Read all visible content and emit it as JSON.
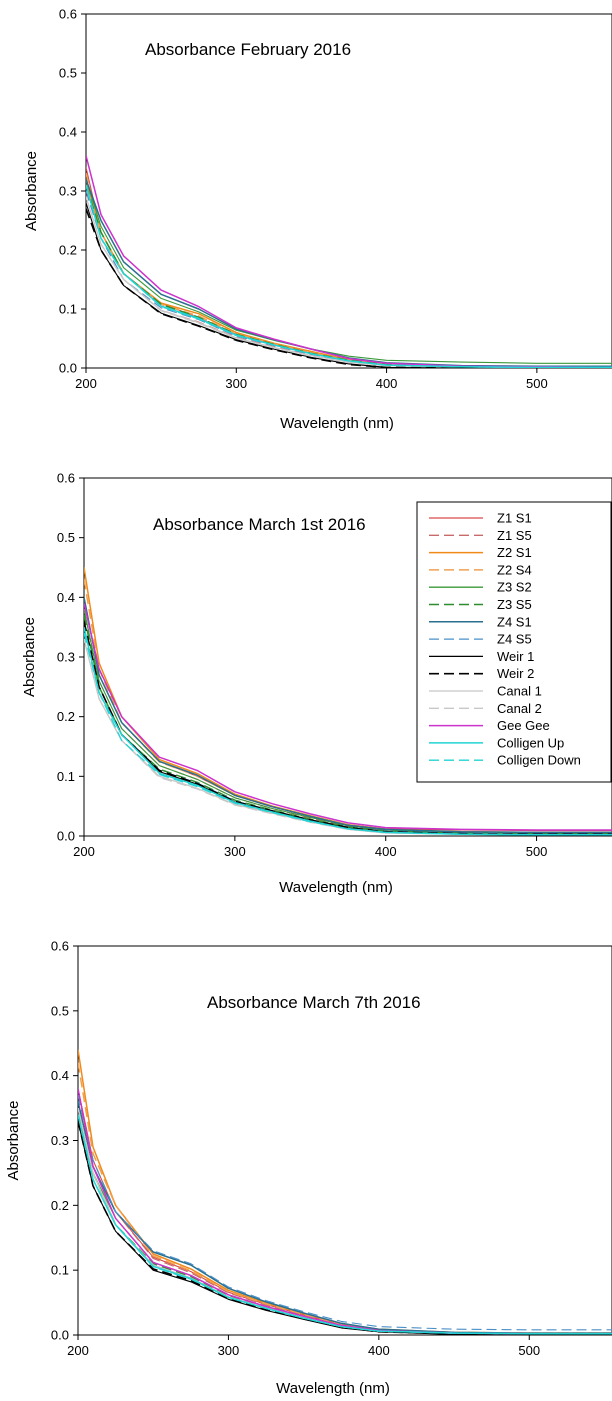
{
  "chart_data": [
    {
      "type": "line",
      "title": "Absorbance February 2016",
      "xlabel": "Wavelength (nm)",
      "ylabel": "Absorbance",
      "xlim": [
        200,
        550
      ],
      "ylim": [
        0,
        0.6
      ],
      "xticks": [
        "200",
        "300",
        "400",
        "500"
      ],
      "yticks": [
        "0.0",
        "0.1",
        "0.2",
        "0.3",
        "0.4",
        "0.5",
        "0.6"
      ],
      "grid": false,
      "legend": "none",
      "x": [
        200,
        210,
        225,
        250,
        275,
        300,
        325,
        350,
        375,
        400,
        450,
        500,
        550
      ],
      "series": [
        {
          "name": "Z1 S1",
          "values": [
            0.34,
            0.23,
            0.16,
            0.11,
            0.085,
            0.057,
            0.04,
            0.025,
            0.012,
            0.006,
            0.003,
            0.002,
            0.002
          ]
        },
        {
          "name": "Z1 S5",
          "values": [
            0.3,
            0.22,
            0.15,
            0.098,
            0.078,
            0.052,
            0.036,
            0.022,
            0.01,
            0.005,
            0.002,
            0.001,
            0.001
          ]
        },
        {
          "name": "Z2 S1",
          "values": [
            0.32,
            0.23,
            0.16,
            0.11,
            0.092,
            0.06,
            0.042,
            0.028,
            0.014,
            0.007,
            0.003,
            0.002,
            0.002
          ]
        },
        {
          "name": "Z2 S4",
          "values": [
            0.33,
            0.23,
            0.16,
            0.108,
            0.088,
            0.058,
            0.041,
            0.026,
            0.013,
            0.006,
            0.003,
            0.002,
            0.002
          ]
        },
        {
          "name": "Z3 S2",
          "values": [
            0.32,
            0.24,
            0.17,
            0.118,
            0.095,
            0.064,
            0.047,
            0.032,
            0.02,
            0.013,
            0.01,
            0.008,
            0.008
          ]
        },
        {
          "name": "Z3 S5",
          "values": [
            0.31,
            0.23,
            0.16,
            0.108,
            0.086,
            0.057,
            0.04,
            0.025,
            0.013,
            0.006,
            0.003,
            0.002,
            0.002
          ]
        },
        {
          "name": "Z4 S1",
          "values": [
            0.32,
            0.25,
            0.18,
            0.125,
            0.1,
            0.066,
            0.048,
            0.032,
            0.017,
            0.009,
            0.004,
            0.003,
            0.003
          ]
        },
        {
          "name": "Z4 S5",
          "values": [
            0.3,
            0.22,
            0.15,
            0.102,
            0.082,
            0.054,
            0.038,
            0.023,
            0.011,
            0.005,
            0.002,
            0.001,
            0.001
          ]
        },
        {
          "name": "Weir 1",
          "values": [
            0.28,
            0.2,
            0.14,
            0.093,
            0.072,
            0.048,
            0.032,
            0.018,
            0.007,
            0.001,
            0.0,
            0.0,
            0.0
          ]
        },
        {
          "name": "Weir 2",
          "values": [
            0.27,
            0.2,
            0.14,
            0.092,
            0.071,
            0.047,
            0.031,
            0.017,
            0.006,
            0.001,
            0.0,
            0.0,
            0.0
          ]
        },
        {
          "name": "Canal 1",
          "values": [
            0.29,
            0.21,
            0.15,
            0.098,
            0.077,
            0.051,
            0.035,
            0.021,
            0.01,
            0.004,
            0.002,
            0.001,
            0.001
          ]
        },
        {
          "name": "Canal 2",
          "values": [
            0.29,
            0.21,
            0.15,
            0.097,
            0.076,
            0.05,
            0.034,
            0.02,
            0.009,
            0.004,
            0.002,
            0.001,
            0.001
          ]
        },
        {
          "name": "Gee Gee",
          "values": [
            0.36,
            0.26,
            0.19,
            0.132,
            0.104,
            0.068,
            0.049,
            0.032,
            0.016,
            0.008,
            0.003,
            0.002,
            0.001
          ]
        },
        {
          "name": "Colligen Up",
          "values": [
            0.31,
            0.22,
            0.16,
            0.105,
            0.084,
            0.056,
            0.039,
            0.024,
            0.012,
            0.005,
            0.002,
            0.001,
            0.001
          ]
        },
        {
          "name": "Colligen Down",
          "values": [
            0.31,
            0.22,
            0.16,
            0.104,
            0.083,
            0.055,
            0.039,
            0.024,
            0.012,
            0.005,
            0.002,
            0.001,
            0.001
          ]
        }
      ]
    },
    {
      "type": "line",
      "title": "Absorbance March 1st 2016",
      "xlabel": "Wavelength (nm)",
      "ylabel": "Absorbance",
      "xlim": [
        200,
        550
      ],
      "ylim": [
        0,
        0.6
      ],
      "xticks": [
        "200",
        "300",
        "400",
        "500"
      ],
      "yticks": [
        "0.0",
        "0.1",
        "0.2",
        "0.3",
        "0.4",
        "0.5",
        "0.6"
      ],
      "grid": false,
      "legend": "top-right",
      "x": [
        200,
        210,
        225,
        250,
        275,
        300,
        325,
        350,
        375,
        400,
        450,
        500,
        550
      ],
      "series": [
        {
          "name": "Z1 S1",
          "values": [
            0.4,
            0.27,
            0.19,
            0.125,
            0.1,
            0.068,
            0.049,
            0.033,
            0.019,
            0.012,
            0.01,
            0.009,
            0.009
          ]
        },
        {
          "name": "Z1 S5",
          "values": [
            0.38,
            0.26,
            0.18,
            0.118,
            0.095,
            0.064,
            0.046,
            0.03,
            0.016,
            0.009,
            0.006,
            0.005,
            0.005
          ]
        },
        {
          "name": "Z2 S1",
          "values": [
            0.45,
            0.29,
            0.2,
            0.128,
            0.105,
            0.07,
            0.05,
            0.034,
            0.019,
            0.011,
            0.007,
            0.006,
            0.006
          ]
        },
        {
          "name": "Z2 S4",
          "values": [
            0.43,
            0.28,
            0.19,
            0.124,
            0.101,
            0.068,
            0.049,
            0.033,
            0.018,
            0.01,
            0.006,
            0.005,
            0.005
          ]
        },
        {
          "name": "Z3 S2",
          "values": [
            0.38,
            0.26,
            0.18,
            0.118,
            0.095,
            0.064,
            0.046,
            0.031,
            0.017,
            0.01,
            0.006,
            0.005,
            0.005
          ]
        },
        {
          "name": "Z3 S5",
          "values": [
            0.37,
            0.25,
            0.17,
            0.112,
            0.09,
            0.06,
            0.043,
            0.028,
            0.015,
            0.008,
            0.005,
            0.004,
            0.004
          ]
        },
        {
          "name": "Z4 S1",
          "values": [
            0.4,
            0.27,
            0.19,
            0.125,
            0.102,
            0.068,
            0.049,
            0.033,
            0.018,
            0.011,
            0.007,
            0.006,
            0.006
          ]
        },
        {
          "name": "Z4 S5",
          "values": [
            0.36,
            0.25,
            0.17,
            0.11,
            0.089,
            0.059,
            0.042,
            0.027,
            0.014,
            0.008,
            0.005,
            0.004,
            0.004
          ]
        },
        {
          "name": "Weir 1",
          "values": [
            0.35,
            0.24,
            0.17,
            0.108,
            0.087,
            0.057,
            0.041,
            0.026,
            0.013,
            0.006,
            0.003,
            0.002,
            0.002
          ]
        },
        {
          "name": "Weir 2",
          "values": [
            0.36,
            0.25,
            0.17,
            0.11,
            0.088,
            0.058,
            0.042,
            0.027,
            0.014,
            0.007,
            0.004,
            0.003,
            0.003
          ]
        },
        {
          "name": "Canal 1",
          "values": [
            0.33,
            0.23,
            0.16,
            0.1,
            0.08,
            0.053,
            0.038,
            0.024,
            0.011,
            0.005,
            0.003,
            0.002,
            0.002
          ]
        },
        {
          "name": "Canal 2",
          "values": [
            0.33,
            0.23,
            0.16,
            0.098,
            0.079,
            0.052,
            0.037,
            0.023,
            0.011,
            0.005,
            0.003,
            0.002,
            0.002
          ]
        },
        {
          "name": "Gee Gee",
          "values": [
            0.39,
            0.28,
            0.2,
            0.132,
            0.11,
            0.074,
            0.054,
            0.037,
            0.022,
            0.014,
            0.011,
            0.01,
            0.01
          ]
        },
        {
          "name": "Colligen Up",
          "values": [
            0.35,
            0.24,
            0.17,
            0.105,
            0.085,
            0.056,
            0.04,
            0.025,
            0.012,
            0.006,
            0.003,
            0.002,
            0.002
          ]
        },
        {
          "name": "Colligen Down",
          "values": [
            0.34,
            0.24,
            0.16,
            0.103,
            0.083,
            0.055,
            0.039,
            0.024,
            0.012,
            0.006,
            0.003,
            0.002,
            0.002
          ]
        }
      ]
    },
    {
      "type": "line",
      "title": "Absorbance March 7th 2016",
      "xlabel": "Wavelength (nm)",
      "ylabel": "Absorbance",
      "xlim": [
        200,
        555
      ],
      "ylim": [
        0,
        0.6
      ],
      "xticks": [
        "200",
        "300",
        "400",
        "500"
      ],
      "yticks": [
        "0.0",
        "0.1",
        "0.2",
        "0.3",
        "0.4",
        "0.5",
        "0.6"
      ],
      "grid": false,
      "legend": "none",
      "x": [
        200,
        210,
        225,
        250,
        275,
        300,
        325,
        350,
        375,
        400,
        450,
        500,
        555
      ],
      "series": [
        {
          "name": "Z1 S1",
          "values": [
            0.38,
            0.27,
            0.19,
            0.12,
            0.098,
            0.066,
            0.047,
            0.031,
            0.016,
            0.008,
            0.004,
            0.003,
            0.003
          ]
        },
        {
          "name": "Z1 S5",
          "values": [
            0.37,
            0.27,
            0.19,
            0.118,
            0.096,
            0.065,
            0.046,
            0.03,
            0.015,
            0.007,
            0.003,
            0.002,
            0.002
          ]
        },
        {
          "name": "Z2 S1",
          "values": [
            0.44,
            0.29,
            0.2,
            0.125,
            0.102,
            0.069,
            0.049,
            0.033,
            0.017,
            0.009,
            0.004,
            0.003,
            0.003
          ]
        },
        {
          "name": "Z2 S4",
          "values": [
            0.42,
            0.28,
            0.2,
            0.122,
            0.099,
            0.067,
            0.048,
            0.032,
            0.016,
            0.008,
            0.004,
            0.003,
            0.003
          ]
        },
        {
          "name": "Z3 S2",
          "values": [
            0.35,
            0.25,
            0.18,
            0.112,
            0.092,
            0.062,
            0.044,
            0.029,
            0.014,
            0.007,
            0.003,
            0.002,
            0.002
          ]
        },
        {
          "name": "Z3 S5",
          "values": [
            0.34,
            0.25,
            0.17,
            0.11,
            0.09,
            0.061,
            0.043,
            0.028,
            0.014,
            0.007,
            0.003,
            0.002,
            0.002
          ]
        },
        {
          "name": "Z4 S1",
          "values": [
            0.36,
            0.26,
            0.19,
            0.128,
            0.108,
            0.072,
            0.051,
            0.034,
            0.018,
            0.009,
            0.004,
            0.003,
            0.003
          ]
        },
        {
          "name": "Z4 S5",
          "values": [
            0.37,
            0.27,
            0.19,
            0.13,
            0.11,
            0.074,
            0.053,
            0.036,
            0.021,
            0.013,
            0.009,
            0.008,
            0.008
          ]
        },
        {
          "name": "Weir 1",
          "values": [
            0.33,
            0.23,
            0.16,
            0.1,
            0.082,
            0.055,
            0.038,
            0.024,
            0.011,
            0.005,
            0.001,
            0.0,
            0.0
          ]
        },
        {
          "name": "Weir 2",
          "values": [
            0.33,
            0.23,
            0.16,
            0.102,
            0.084,
            0.056,
            0.039,
            0.025,
            0.012,
            0.005,
            0.002,
            0.001,
            0.001
          ]
        },
        {
          "name": "Canal 1",
          "values": [
            0.35,
            0.25,
            0.17,
            0.108,
            0.088,
            0.059,
            0.042,
            0.027,
            0.013,
            0.006,
            0.003,
            0.002,
            0.002
          ]
        },
        {
          "name": "Canal 2",
          "values": [
            0.35,
            0.25,
            0.17,
            0.107,
            0.087,
            0.058,
            0.041,
            0.026,
            0.013,
            0.006,
            0.003,
            0.002,
            0.002
          ]
        },
        {
          "name": "Gee Gee",
          "values": [
            0.38,
            0.26,
            0.18,
            0.112,
            0.092,
            0.062,
            0.044,
            0.029,
            0.015,
            0.007,
            0.003,
            0.002,
            0.002
          ]
        },
        {
          "name": "Colligen Up",
          "values": [
            0.34,
            0.24,
            0.17,
            0.106,
            0.087,
            0.058,
            0.041,
            0.026,
            0.013,
            0.006,
            0.003,
            0.002,
            0.002
          ]
        },
        {
          "name": "Colligen Down",
          "values": [
            0.34,
            0.24,
            0.17,
            0.105,
            0.086,
            0.058,
            0.041,
            0.026,
            0.013,
            0.006,
            0.003,
            0.002,
            0.002
          ]
        }
      ]
    }
  ],
  "series_styles": {
    "Z1 S1": {
      "color": "#d94a4a",
      "dash": "solid",
      "width": 1.1
    },
    "Z1 S5": {
      "color": "#c86a6a",
      "dash": "long",
      "width": 1.1
    },
    "Z2 S1": {
      "color": "#f08a1a",
      "dash": "solid",
      "width": 1.5
    },
    "Z2 S4": {
      "color": "#f0a050",
      "dash": "long",
      "width": 1.5
    },
    "Z3 S2": {
      "color": "#3a9a3a",
      "dash": "solid",
      "width": 1.1
    },
    "Z3 S5": {
      "color": "#2e8b2e",
      "dash": "long",
      "width": 1.5
    },
    "Z4 S1": {
      "color": "#2a6f8f",
      "dash": "solid",
      "width": 1.5
    },
    "Z4 S5": {
      "color": "#4a90c8",
      "dash": "long",
      "width": 1.1
    },
    "Weir 1": {
      "color": "#000000",
      "dash": "solid",
      "width": 1.1
    },
    "Weir 2": {
      "color": "#000000",
      "dash": "long",
      "width": 1.6
    },
    "Canal 1": {
      "color": "#c8c8c8",
      "dash": "solid",
      "width": 1.3
    },
    "Canal 2": {
      "color": "#c8c8c8",
      "dash": "long",
      "width": 1.3
    },
    "Gee Gee": {
      "color": "#cc33cc",
      "dash": "solid",
      "width": 1.5
    },
    "Colligen Up": {
      "color": "#22d4d4",
      "dash": "solid",
      "width": 1.5
    },
    "Colligen Down": {
      "color": "#22d4d4",
      "dash": "long",
      "width": 1.3
    }
  }
}
